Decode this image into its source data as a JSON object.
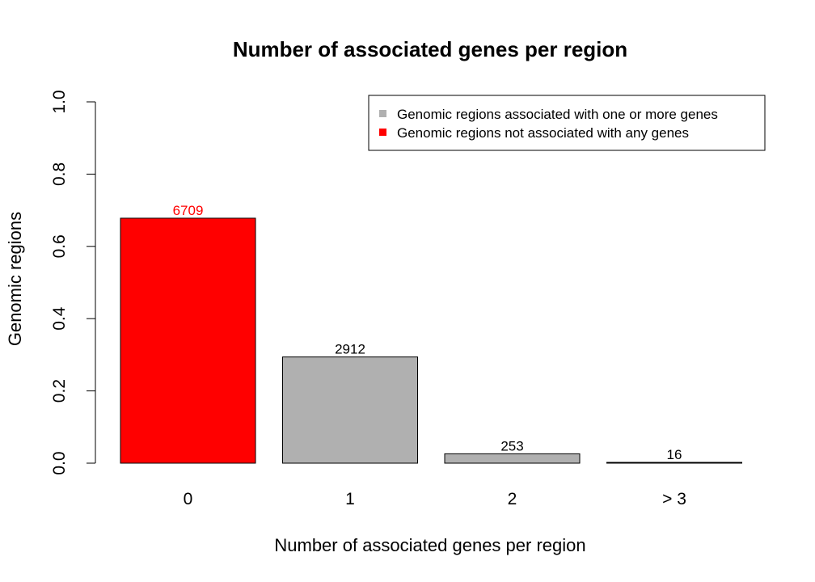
{
  "chart_data": {
    "type": "bar",
    "title": "Number of associated genes per region",
    "xlabel": "Number of associated genes per region",
    "ylabel": "Genomic regions",
    "categories": [
      "0",
      "1",
      "2",
      "> 3"
    ],
    "values": [
      0.678,
      0.294,
      0.026,
      0.002
    ],
    "data_labels": [
      "6709",
      "2912",
      "253",
      "16"
    ],
    "bar_colors": [
      "#ff0000",
      "#b0b0b0",
      "#b0b0b0",
      "#b0b0b0"
    ],
    "label_colors": [
      "#ff0000",
      "#000000",
      "#000000",
      "#000000"
    ],
    "ylim": [
      0,
      1
    ],
    "yticks": [
      0,
      0.2,
      0.4,
      0.6,
      0.8,
      1
    ],
    "ytick_labels": [
      "0.0",
      "0.2",
      "0.4",
      "0.6",
      "0.8",
      "1.0"
    ],
    "grid": false,
    "legend": {
      "placement": "top-right",
      "entries": [
        {
          "label": "Genomic regions associated with one or more genes",
          "color": "#b0b0b0"
        },
        {
          "label": "Genomic regions not associated with any genes",
          "color": "#ff0000"
        }
      ]
    }
  }
}
